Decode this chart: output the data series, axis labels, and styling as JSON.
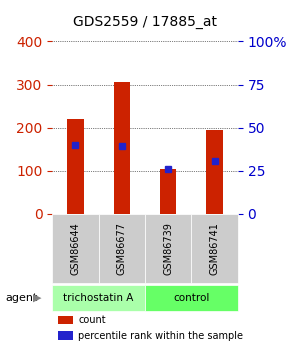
{
  "title": "GDS2559 / 17885_at",
  "samples": [
    "GSM86644",
    "GSM86677",
    "GSM86739",
    "GSM86741"
  ],
  "red_values": [
    220,
    305,
    105,
    195
  ],
  "blue_values": [
    160,
    158,
    103,
    122
  ],
  "left_ylim": [
    0,
    400
  ],
  "right_ylim": [
    0,
    100
  ],
  "left_ticks": [
    0,
    100,
    200,
    300,
    400
  ],
  "right_ticks": [
    0,
    25,
    50,
    75,
    100
  ],
  "right_tick_labels": [
    "0",
    "25",
    "50",
    "75",
    "100%"
  ],
  "groups": [
    {
      "label": "trichostatin A",
      "color": "#aaffaa",
      "samples": [
        0,
        1
      ]
    },
    {
      "label": "control",
      "color": "#66ff66",
      "samples": [
        2,
        3
      ]
    }
  ],
  "agent_label": "agent",
  "legend_items": [
    {
      "color": "#cc2200",
      "label": "count"
    },
    {
      "color": "#2222cc",
      "label": "percentile rank within the sample"
    }
  ],
  "bar_color": "#cc2200",
  "dot_color": "#2222cc",
  "grid_color": "#000000",
  "bar_width": 0.35,
  "sample_box_color": "#cccccc",
  "left_tick_color": "#cc2200",
  "right_tick_color": "#0000cc"
}
